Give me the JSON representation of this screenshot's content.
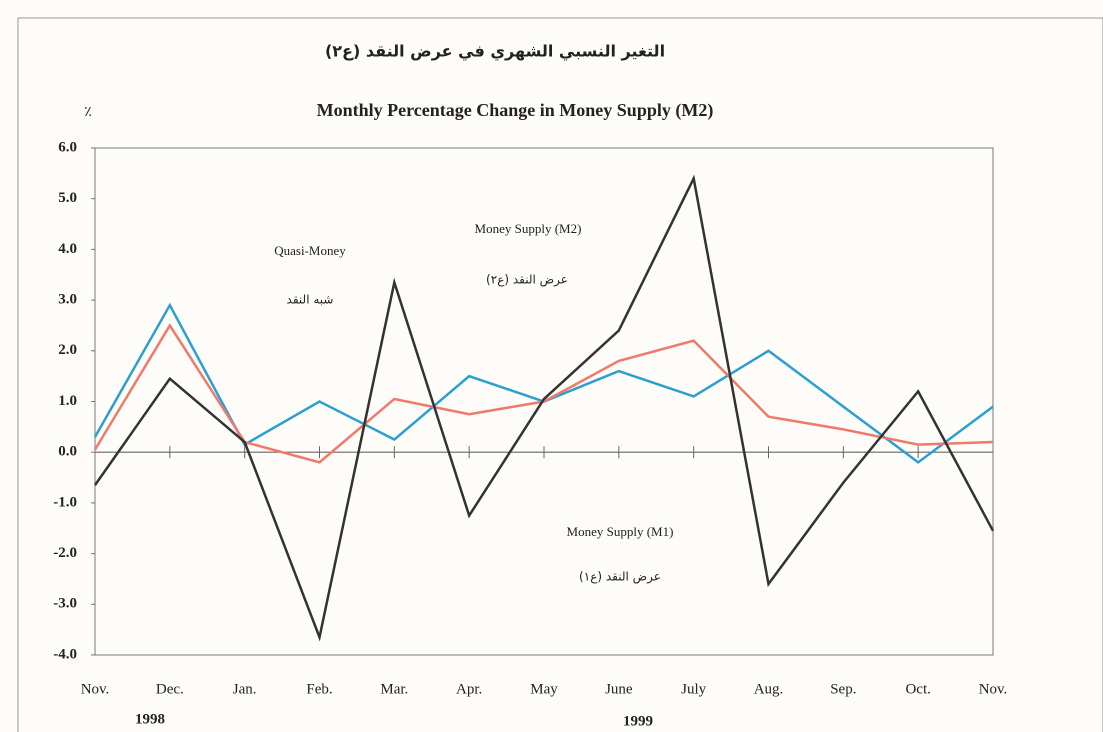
{
  "chart_data": {
    "type": "line",
    "title_ar": "التغير النسبي الشهري في عرض النقد (ع٢)",
    "title": "Monthly Percentage Change  in Money Supply (M2)",
    "unit": "٪",
    "categories": [
      "Nov.",
      "Dec.",
      "Jan.",
      "Feb.",
      "Mar.",
      "Apr.",
      "May",
      "June",
      "July",
      "Aug.",
      "Sep.",
      "Oct.",
      "Nov."
    ],
    "years": [
      "1998",
      "1999"
    ],
    "ylim": [
      -4,
      6
    ],
    "yticks": [
      {
        "value": -4,
        "label": "-4.0"
      },
      {
        "value": -3,
        "label": "-3.0"
      },
      {
        "value": -2,
        "label": "-2.0"
      },
      {
        "value": -1,
        "label": "-1.0"
      },
      {
        "value": 0,
        "label": "0.0"
      },
      {
        "value": 1,
        "label": "1.0"
      },
      {
        "value": 2,
        "label": "2.0"
      },
      {
        "value": 3,
        "label": "3.0"
      },
      {
        "value": 4,
        "label": "4.0"
      },
      {
        "value": 5,
        "label": "5.0"
      },
      {
        "value": 6,
        "label": "6.0"
      }
    ],
    "series": [
      {
        "name": "Quasi-Money",
        "name_ar": "شبه النقد",
        "color": "#2a9fd0",
        "values": [
          0.3,
          2.9,
          0.15,
          1.0,
          0.25,
          1.5,
          1.0,
          1.6,
          1.1,
          2.0,
          0.9,
          -0.2,
          0.9
        ]
      },
      {
        "name": "Money Supply (M2)",
        "name_ar": "عرض النقد (ع٢)",
        "color": "#ef7a6a",
        "values": [
          0.05,
          2.5,
          0.2,
          -0.2,
          1.05,
          0.75,
          1.0,
          1.8,
          2.2,
          0.7,
          0.45,
          0.15,
          0.2
        ]
      },
      {
        "name": "Money Supply (M1)",
        "name_ar": "عرض النقد (ع١)",
        "color": "#333333",
        "values": [
          -0.65,
          1.45,
          0.2,
          -3.65,
          3.35,
          -1.25,
          1.05,
          2.4,
          5.4,
          -2.6,
          -0.6,
          1.2,
          -1.55
        ]
      }
    ]
  }
}
